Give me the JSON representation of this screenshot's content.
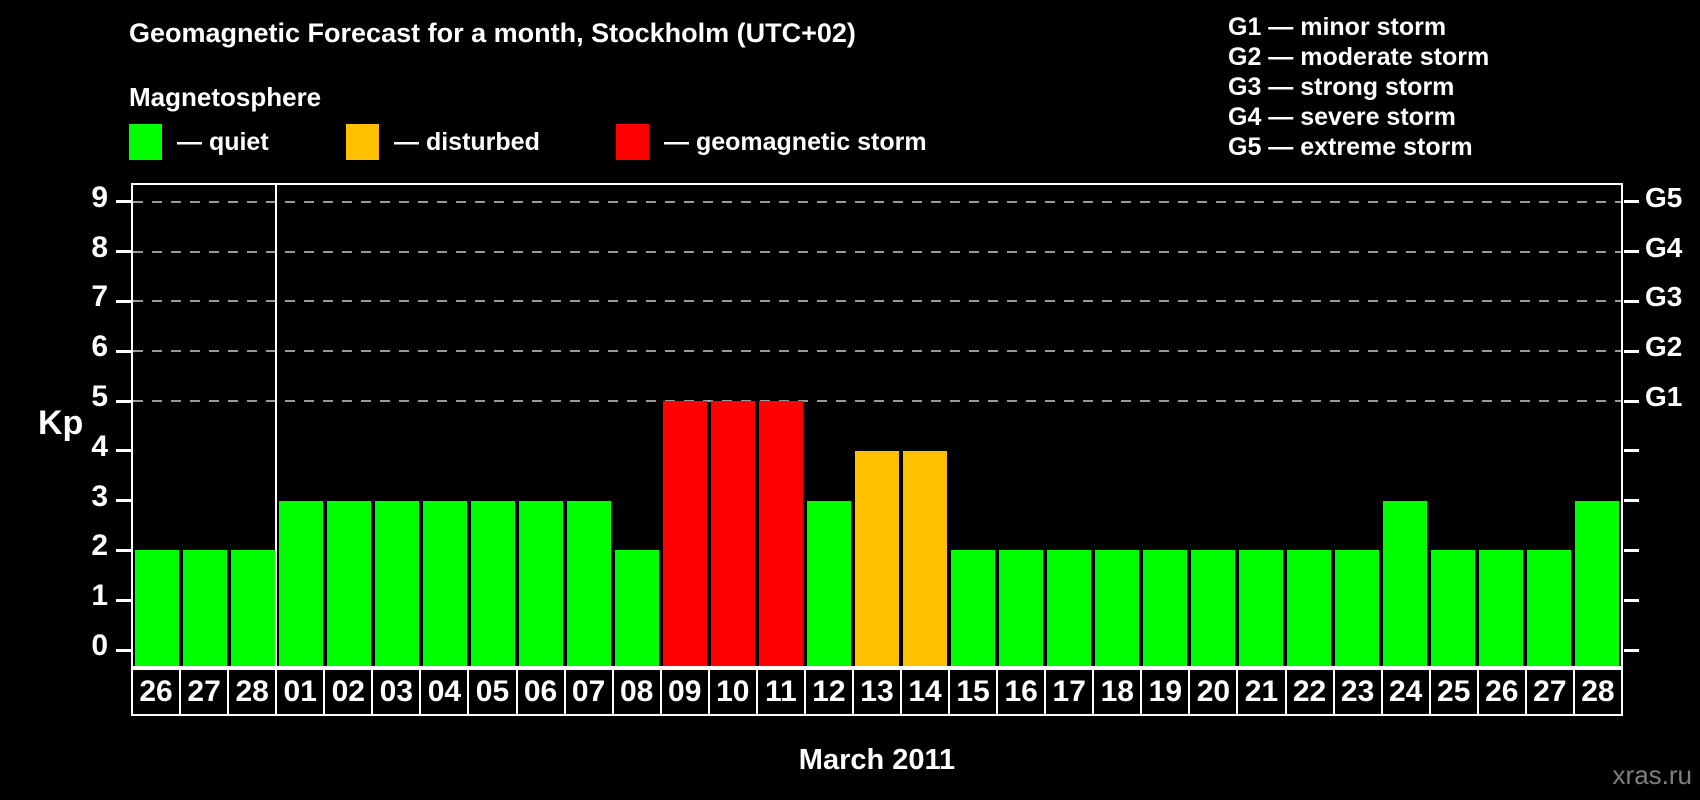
{
  "header": {
    "title": "Geomagnetic Forecast for a month, Stockholm (UTC+02)",
    "subtitle": "Magnetosphere"
  },
  "legend": {
    "items": [
      {
        "label": "— quiet",
        "status": "quiet"
      },
      {
        "label": "— disturbed",
        "status": "disturbed"
      },
      {
        "label": "— geomagnetic storm",
        "status": "storm"
      }
    ]
  },
  "storm_scale_legend": {
    "items": [
      "G1 — minor storm",
      "G2 — moderate storm",
      "G3 — strong storm",
      "G4 — severe storm",
      "G5 — extreme storm"
    ]
  },
  "colors": {
    "quiet": "#00ff00",
    "disturbed": "#ffc000",
    "storm": "#ff0000",
    "grid": "#999999",
    "frame": "#ffffff",
    "background": "#000000",
    "watermark": "#7f7f7f"
  },
  "watermark": "xras.ru",
  "chart_data": {
    "type": "bar",
    "title": "Geomagnetic Forecast for a month, Stockholm (UTC+02)",
    "ylabel": "Kp",
    "xlabel": "March 2011",
    "categories": [
      "26",
      "27",
      "28",
      "01",
      "02",
      "03",
      "04",
      "05",
      "06",
      "07",
      "08",
      "09",
      "10",
      "11",
      "12",
      "13",
      "14",
      "15",
      "16",
      "17",
      "18",
      "19",
      "20",
      "21",
      "22",
      "23",
      "24",
      "25",
      "26",
      "27",
      "28"
    ],
    "values": [
      2,
      2,
      2,
      3,
      3,
      3,
      3,
      3,
      3,
      3,
      2,
      5,
      5,
      5,
      3,
      4,
      4,
      2,
      2,
      2,
      2,
      2,
      2,
      2,
      2,
      2,
      3,
      2,
      2,
      2,
      3
    ],
    "statuses": [
      "quiet",
      "quiet",
      "quiet",
      "quiet",
      "quiet",
      "quiet",
      "quiet",
      "quiet",
      "quiet",
      "quiet",
      "quiet",
      "storm",
      "storm",
      "storm",
      "quiet",
      "disturbed",
      "disturbed",
      "quiet",
      "quiet",
      "quiet",
      "quiet",
      "quiet",
      "quiet",
      "quiet",
      "quiet",
      "quiet",
      "quiet",
      "quiet",
      "quiet",
      "quiet",
      "quiet"
    ],
    "yticks": [
      0,
      1,
      2,
      3,
      4,
      5,
      6,
      7,
      8,
      9
    ],
    "ylim": [
      -0.35,
      9.4
    ],
    "grid": "dashed horizontal lines at storm levels",
    "grid_levels": [
      5,
      6,
      7,
      8,
      9
    ],
    "right_axis_labels": [
      {
        "label": "G1",
        "kp": 5
      },
      {
        "label": "G2",
        "kp": 6
      },
      {
        "label": "G3",
        "kp": 7
      },
      {
        "label": "G4",
        "kp": 8
      },
      {
        "label": "G5",
        "kp": 9
      }
    ],
    "separator_after_index": 2,
    "legend_position": "top-left"
  }
}
